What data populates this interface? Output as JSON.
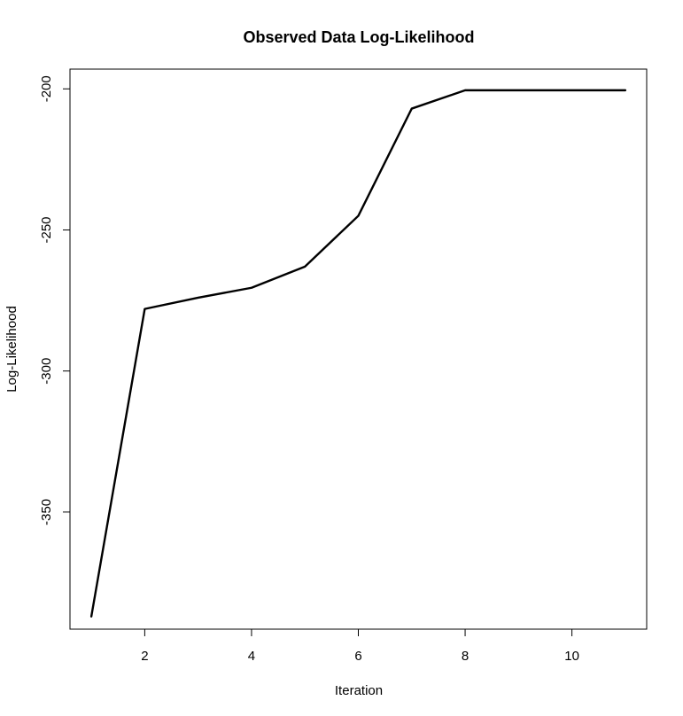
{
  "chart_data": {
    "type": "line",
    "title": "Observed Data Log-Likelihood",
    "xlabel": "Iteration",
    "ylabel": "Log-Likelihood",
    "x": [
      1,
      2,
      3,
      4,
      5,
      6,
      7,
      8,
      9,
      10,
      11
    ],
    "series": [
      {
        "values": [
          -387,
          -278,
          -274,
          -270.5,
          -263,
          -245,
          -207,
          -200.5,
          -200.5,
          -200.5,
          -200.5
        ]
      }
    ],
    "xticks": [
      2,
      4,
      6,
      8,
      10
    ],
    "yticks": [
      -200,
      -250,
      -300,
      -350
    ],
    "xlim": [
      0.6,
      11.4
    ],
    "ylim": [
      -391.5,
      -193
    ],
    "grid": false,
    "line_color": "#000000"
  }
}
